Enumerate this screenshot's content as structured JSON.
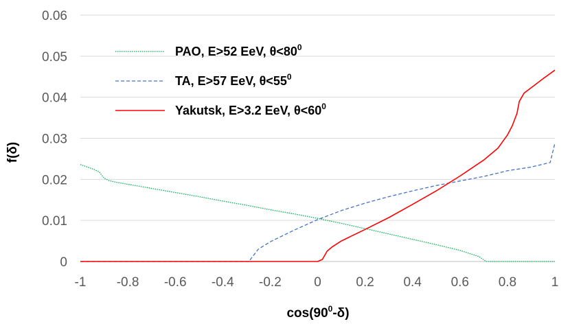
{
  "chart_data": {
    "type": "line",
    "title": "",
    "xlabel": {
      "pre": "cos(90",
      "sup": "0",
      "post": "-δ)"
    },
    "ylabel": "f(δ)",
    "xlim": [
      -1,
      1
    ],
    "ylim": [
      0,
      0.06
    ],
    "x_ticks": [
      -1,
      -0.8,
      -0.6,
      -0.4,
      -0.2,
      0,
      0.2,
      0.4,
      0.6,
      0.8,
      1
    ],
    "x_tick_labels": [
      "-1",
      "-0.8",
      "-0.6",
      "-0.4",
      "-0.2",
      "0",
      "0.2",
      "0.4",
      "0.6",
      "0.8",
      "1"
    ],
    "y_ticks": [
      0,
      0.01,
      0.02,
      0.03,
      0.04,
      0.05,
      0.06
    ],
    "y_tick_labels": [
      "0",
      "0.01",
      "0.02",
      "0.03",
      "0.04",
      "0.05",
      "0.06"
    ],
    "grid": "horizontal",
    "legend_position": "top-left",
    "series": [
      {
        "name": {
          "pre": "PAO, E>52 EeV, θ<80",
          "sup": "0"
        },
        "color": "#00b050",
        "dash": "dotted",
        "points": [
          [
            -1,
            0.0236
          ],
          [
            -0.95,
            0.0226
          ],
          [
            -0.92,
            0.0218
          ],
          [
            -0.9,
            0.0203
          ],
          [
            -0.88,
            0.0197
          ],
          [
            -0.85,
            0.0193
          ],
          [
            -0.8,
            0.0188
          ],
          [
            -0.7,
            0.0178
          ],
          [
            -0.6,
            0.0168
          ],
          [
            -0.5,
            0.0158
          ],
          [
            -0.4,
            0.0147
          ],
          [
            -0.3,
            0.0137
          ],
          [
            -0.2,
            0.0126
          ],
          [
            -0.1,
            0.0116
          ],
          [
            0,
            0.0105
          ],
          [
            0.1,
            0.0093
          ],
          [
            0.2,
            0.008
          ],
          [
            0.3,
            0.0067
          ],
          [
            0.4,
            0.0054
          ],
          [
            0.5,
            0.0041
          ],
          [
            0.6,
            0.0027
          ],
          [
            0.68,
            0.0012
          ],
          [
            0.71,
            0.0
          ],
          [
            0.8,
            0.0
          ],
          [
            0.9,
            0.0
          ],
          [
            1,
            0.0
          ]
        ]
      },
      {
        "name": {
          "pre": "TA, E>57 EeV, θ<55",
          "sup": "0"
        },
        "color": "#4472c4",
        "dash": "dashed",
        "points": [
          [
            -1,
            0.0
          ],
          [
            -0.5,
            0.0
          ],
          [
            -0.29,
            0.0
          ],
          [
            -0.27,
            0.0015
          ],
          [
            -0.25,
            0.003
          ],
          [
            -0.2,
            0.0048
          ],
          [
            -0.1,
            0.0076
          ],
          [
            0,
            0.0102
          ],
          [
            0.1,
            0.0124
          ],
          [
            0.2,
            0.0142
          ],
          [
            0.3,
            0.0158
          ],
          [
            0.4,
            0.0172
          ],
          [
            0.5,
            0.0185
          ],
          [
            0.6,
            0.0196
          ],
          [
            0.7,
            0.0207
          ],
          [
            0.8,
            0.0221
          ],
          [
            0.9,
            0.023
          ],
          [
            0.98,
            0.0241
          ],
          [
            1,
            0.0288
          ]
        ]
      },
      {
        "name": {
          "pre": "Yakutsk, E>3.2 EeV, θ<60",
          "sup": "0"
        },
        "color": "#ff0000",
        "dash": "solid",
        "points": [
          [
            -1,
            0.0
          ],
          [
            -0.5,
            0.0
          ],
          [
            0,
            0.0
          ],
          [
            0.02,
            0.0005
          ],
          [
            0.04,
            0.0025
          ],
          [
            0.06,
            0.0035
          ],
          [
            0.1,
            0.005
          ],
          [
            0.2,
            0.0078
          ],
          [
            0.3,
            0.0107
          ],
          [
            0.4,
            0.0139
          ],
          [
            0.5,
            0.0172
          ],
          [
            0.6,
            0.0208
          ],
          [
            0.7,
            0.0247
          ],
          [
            0.76,
            0.0276
          ],
          [
            0.8,
            0.0308
          ],
          [
            0.82,
            0.033
          ],
          [
            0.84,
            0.036
          ],
          [
            0.85,
            0.039
          ],
          [
            0.87,
            0.041
          ],
          [
            0.9,
            0.0423
          ],
          [
            0.95,
            0.0445
          ],
          [
            1,
            0.0466
          ]
        ]
      }
    ]
  }
}
